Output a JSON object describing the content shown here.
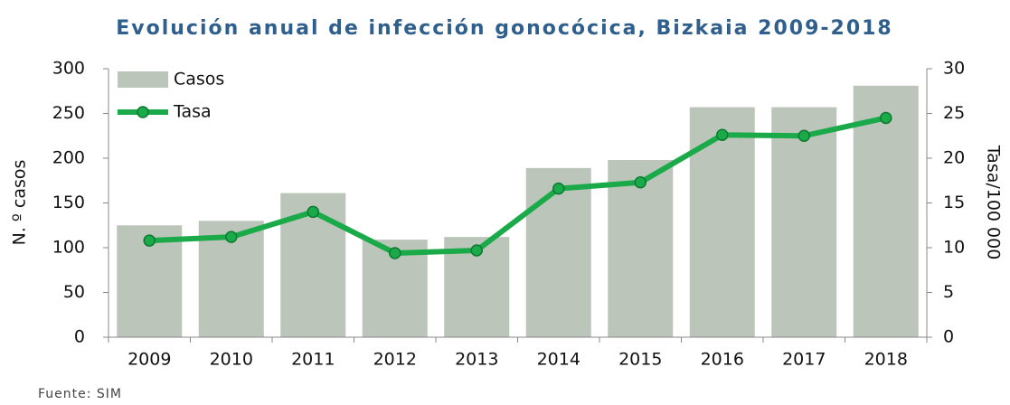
{
  "chart_data": {
    "type": "combo",
    "title": "Evolución anual de infección gonocócica, Bizkaia 2009-2018",
    "source": "Fuente: SIM",
    "ylabel": "N. º casos",
    "y2label": "Tasa/100 000",
    "categories": [
      "2009",
      "2010",
      "2011",
      "2012",
      "2013",
      "2014",
      "2015",
      "2016",
      "2017",
      "2018"
    ],
    "series": [
      {
        "name": "Casos",
        "type": "bar",
        "color": "#bcc5b9",
        "values": [
          125,
          130,
          161,
          109,
          112,
          189,
          198,
          257,
          257,
          281
        ]
      },
      {
        "name": "Tasa",
        "type": "line",
        "axis": "y2",
        "color": "#1aaa4a",
        "values": [
          10.8,
          11.2,
          14.0,
          9.4,
          9.7,
          16.6,
          17.3,
          22.6,
          22.5,
          24.5
        ]
      }
    ],
    "ylim": [
      0,
      300
    ],
    "yticks": [
      0,
      50,
      100,
      150,
      200,
      250,
      300
    ],
    "y2lim": [
      0,
      30
    ],
    "y2ticks": [
      0,
      5,
      10,
      15,
      20,
      25,
      30
    ],
    "legend": "upper left"
  }
}
